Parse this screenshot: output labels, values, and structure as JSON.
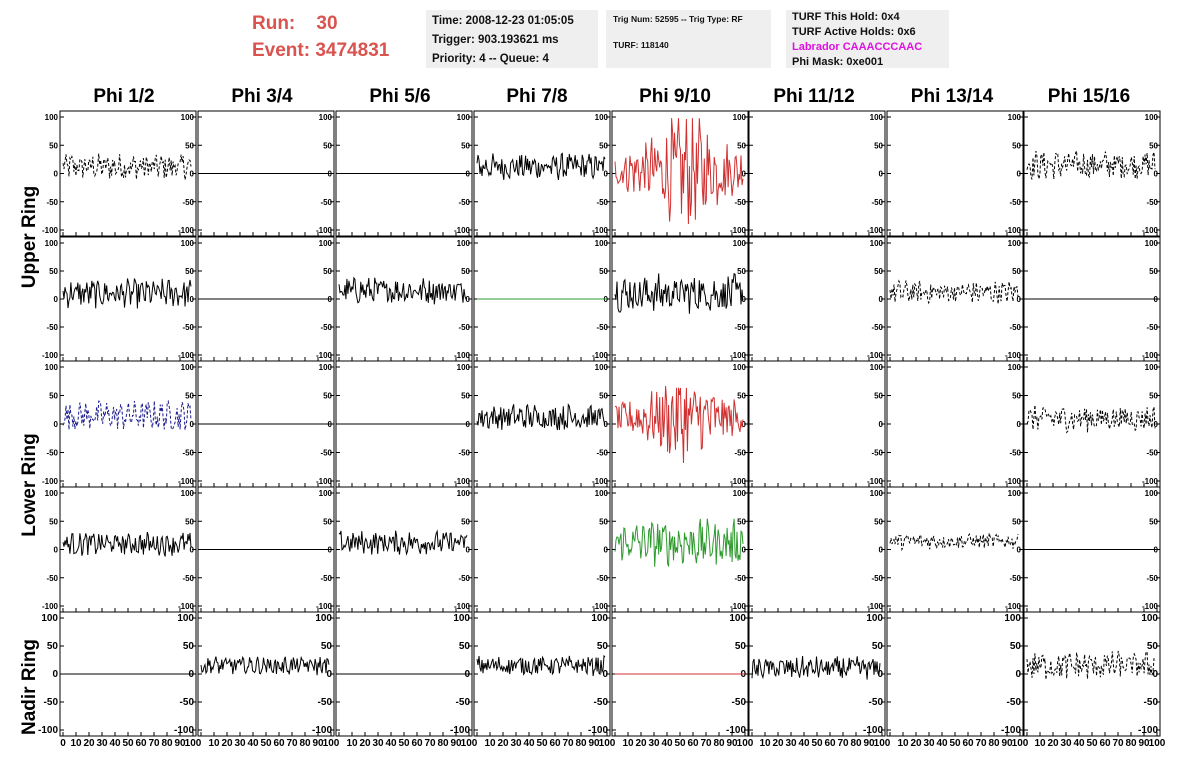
{
  "run": {
    "run_label": "Run:",
    "run_value": "30",
    "event_label": "Event:",
    "event_value": "3474831"
  },
  "info1": {
    "time": "Time: 2008-12-23 01:05:05",
    "trigger": "Trigger: 903.193621 ms",
    "priority": "Priority: 4 -- Queue: 4"
  },
  "info2": {
    "trig": "Trig Num: 52595 -- Trig Type: RF",
    "turf": "TURF: 118140"
  },
  "info3": {
    "this_hold": "TURF This Hold: 0x4",
    "active_holds": "TURF Active Holds: 0x6",
    "labrador": "Labrador CAAACCCAAC",
    "phi_mask": "Phi Mask: 0xe001"
  },
  "columns": [
    "Phi 1/2",
    "Phi 3/4",
    "Phi 5/6",
    "Phi 7/8",
    "Phi 9/10",
    "Phi 11/12",
    "Phi 13/14",
    "Phi 15/16"
  ],
  "rows": [
    "Upper Ring",
    "Lower Ring",
    "Nadir Ring"
  ],
  "y_ticks": [
    "100",
    "50",
    "0",
    "-50",
    "-100"
  ],
  "x_tick_labels": [
    "0",
    "10",
    "20",
    "30",
    "40",
    "50",
    "60",
    "70",
    "80",
    "90",
    "100"
  ],
  "colors": {
    "red": "#d03030",
    "blue": "#1a1a8c",
    "green": "#2e9a2e",
    "black": "#000000",
    "header_red": "#d9534f",
    "magenta": "#e010e0"
  },
  "chart_data": {
    "type": "line",
    "x_range": [
      0,
      100
    ],
    "y_range": [
      -100,
      100
    ],
    "panels": [
      {
        "row": 0,
        "col": 0,
        "style": "dashed",
        "color": "black",
        "amp": 20,
        "offset": 12
      },
      {
        "row": 0,
        "col": 1,
        "style": "flat",
        "color": "black"
      },
      {
        "row": 0,
        "col": 2,
        "style": "flat",
        "color": "black"
      },
      {
        "row": 0,
        "col": 3,
        "style": "solid",
        "color": "black",
        "amp": 20,
        "offset": 12
      },
      {
        "row": 0,
        "col": 4,
        "style": "solid",
        "color": "red",
        "amp": 65,
        "offset": 5
      },
      {
        "row": 0,
        "col": 5,
        "style": "empty"
      },
      {
        "row": 0,
        "col": 6,
        "style": "empty"
      },
      {
        "row": 0,
        "col": 7,
        "style": "dashed",
        "color": "black",
        "amp": 22,
        "offset": 15
      },
      {
        "row": 1,
        "col": 0,
        "style": "solid",
        "color": "black",
        "amp": 22,
        "offset": 10
      },
      {
        "row": 1,
        "col": 1,
        "style": "flat",
        "color": "black"
      },
      {
        "row": 1,
        "col": 2,
        "style": "solid",
        "color": "black",
        "amp": 20,
        "offset": 15
      },
      {
        "row": 1,
        "col": 3,
        "style": "flat",
        "color": "green"
      },
      {
        "row": 1,
        "col": 4,
        "style": "solid",
        "color": "black",
        "amp": 30,
        "offset": 10
      },
      {
        "row": 1,
        "col": 5,
        "style": "empty"
      },
      {
        "row": 1,
        "col": 6,
        "style": "dashed",
        "color": "black",
        "amp": 18,
        "offset": 12
      },
      {
        "row": 1,
        "col": 7,
        "style": "flat",
        "color": "black"
      },
      {
        "row": 2,
        "col": 0,
        "style": "dashed",
        "color": "blue",
        "amp": 22,
        "offset": 15
      },
      {
        "row": 2,
        "col": 1,
        "style": "flat",
        "color": "black"
      },
      {
        "row": 2,
        "col": 2,
        "style": "flat",
        "color": "black"
      },
      {
        "row": 2,
        "col": 3,
        "style": "solid",
        "color": "black",
        "amp": 20,
        "offset": 12
      },
      {
        "row": 2,
        "col": 4,
        "style": "solid",
        "color": "red",
        "amp": 50,
        "offset": 10
      },
      {
        "row": 2,
        "col": 5,
        "style": "empty"
      },
      {
        "row": 2,
        "col": 6,
        "style": "empty"
      },
      {
        "row": 2,
        "col": 7,
        "style": "dashed",
        "color": "black",
        "amp": 20,
        "offset": 10
      },
      {
        "row": 3,
        "col": 0,
        "style": "solid",
        "color": "black",
        "amp": 18,
        "offset": 10
      },
      {
        "row": 3,
        "col": 1,
        "style": "flat",
        "color": "black"
      },
      {
        "row": 3,
        "col": 2,
        "style": "solid",
        "color": "black",
        "amp": 18,
        "offset": 12
      },
      {
        "row": 3,
        "col": 3,
        "style": "empty"
      },
      {
        "row": 3,
        "col": 4,
        "style": "solid",
        "color": "green",
        "amp": 35,
        "offset": 12
      },
      {
        "row": 3,
        "col": 5,
        "style": "empty"
      },
      {
        "row": 3,
        "col": 6,
        "style": "dashed",
        "color": "black",
        "amp": 12,
        "offset": 15
      },
      {
        "row": 3,
        "col": 7,
        "style": "flat",
        "color": "black"
      },
      {
        "row": 4,
        "col": 0,
        "style": "flat",
        "color": "black"
      },
      {
        "row": 4,
        "col": 1,
        "style": "solid",
        "color": "black",
        "amp": 15,
        "offset": 15
      },
      {
        "row": 4,
        "col": 2,
        "style": "flat",
        "color": "black"
      },
      {
        "row": 4,
        "col": 3,
        "style": "solid",
        "color": "black",
        "amp": 15,
        "offset": 15
      },
      {
        "row": 4,
        "col": 4,
        "style": "flat",
        "color": "red"
      },
      {
        "row": 4,
        "col": 5,
        "style": "solid",
        "color": "black",
        "amp": 18,
        "offset": 10
      },
      {
        "row": 4,
        "col": 6,
        "style": "empty"
      },
      {
        "row": 4,
        "col": 7,
        "style": "dashed",
        "color": "black",
        "amp": 22,
        "offset": 15
      }
    ]
  }
}
